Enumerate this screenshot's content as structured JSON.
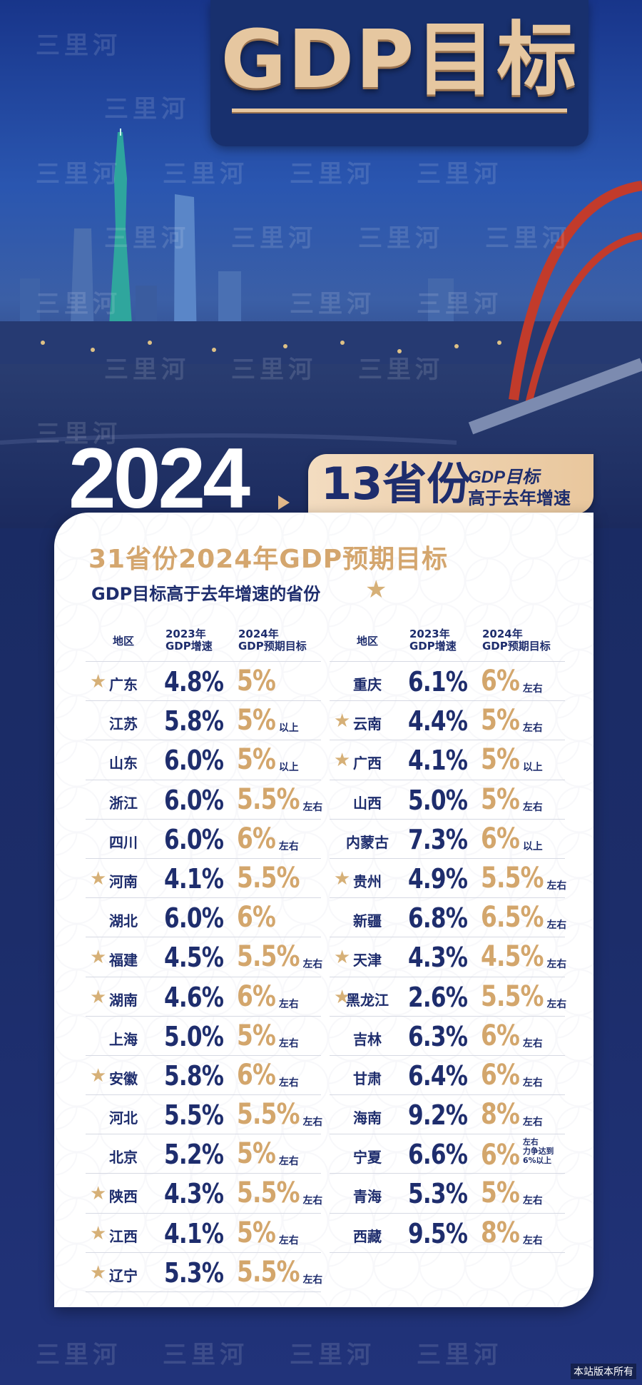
{
  "header": {
    "title": "GDP目标"
  },
  "watermark": "三里河",
  "hero": {
    "year": "2024",
    "count_label": "13省份",
    "sub_line1": "GDP目标",
    "sub_line2": "高于去年增速"
  },
  "card": {
    "title": "31省份2024年GDP预期目标",
    "subtitle": "GDP目标高于去年增速的省份",
    "legend_icon": "star-icon",
    "columns": {
      "region": "地区",
      "growth_2023": [
        "2023年",
        "GDP增速"
      ],
      "target_2024": [
        "2024年",
        "GDP预期目标"
      ]
    },
    "left_rows": [
      {
        "region": "广东",
        "g2023": "4.8%",
        "t2024": "5%",
        "note": "",
        "star": true
      },
      {
        "region": "江苏",
        "g2023": "5.8%",
        "t2024": "5%",
        "note": "以上",
        "star": false
      },
      {
        "region": "山东",
        "g2023": "6.0%",
        "t2024": "5%",
        "note": "以上",
        "star": false
      },
      {
        "region": "浙江",
        "g2023": "6.0%",
        "t2024": "5.5%",
        "note": "左右",
        "star": false
      },
      {
        "region": "四川",
        "g2023": "6.0%",
        "t2024": "6%",
        "note": "左右",
        "star": false
      },
      {
        "region": "河南",
        "g2023": "4.1%",
        "t2024": "5.5%",
        "note": "",
        "star": true
      },
      {
        "region": "湖北",
        "g2023": "6.0%",
        "t2024": "6%",
        "note": "",
        "star": false
      },
      {
        "region": "福建",
        "g2023": "4.5%",
        "t2024": "5.5%",
        "note": "左右",
        "star": true
      },
      {
        "region": "湖南",
        "g2023": "4.6%",
        "t2024": "6%",
        "note": "左右",
        "star": true
      },
      {
        "region": "上海",
        "g2023": "5.0%",
        "t2024": "5%",
        "note": "左右",
        "star": false
      },
      {
        "region": "安徽",
        "g2023": "5.8%",
        "t2024": "6%",
        "note": "左右",
        "star": true
      },
      {
        "region": "河北",
        "g2023": "5.5%",
        "t2024": "5.5%",
        "note": "左右",
        "star": false
      },
      {
        "region": "北京",
        "g2023": "5.2%",
        "t2024": "5%",
        "note": "左右",
        "star": false
      },
      {
        "region": "陕西",
        "g2023": "4.3%",
        "t2024": "5.5%",
        "note": "左右",
        "star": true
      },
      {
        "region": "江西",
        "g2023": "4.1%",
        "t2024": "5%",
        "note": "左右",
        "star": true
      },
      {
        "region": "辽宁",
        "g2023": "5.3%",
        "t2024": "5.5%",
        "note": "左右",
        "star": true
      }
    ],
    "right_rows": [
      {
        "region": "重庆",
        "g2023": "6.1%",
        "t2024": "6%",
        "note": "左右",
        "star": false
      },
      {
        "region": "云南",
        "g2023": "4.4%",
        "t2024": "5%",
        "note": "左右",
        "star": true
      },
      {
        "region": "广西",
        "g2023": "4.1%",
        "t2024": "5%",
        "note": "以上",
        "star": true
      },
      {
        "region": "山西",
        "g2023": "5.0%",
        "t2024": "5%",
        "note": "左右",
        "star": false
      },
      {
        "region": "内蒙古",
        "g2023": "7.3%",
        "t2024": "6%",
        "note": "以上",
        "star": false
      },
      {
        "region": "贵州",
        "g2023": "4.9%",
        "t2024": "5.5%",
        "note": "左右",
        "star": true
      },
      {
        "region": "新疆",
        "g2023": "6.8%",
        "t2024": "6.5%",
        "note": "左右",
        "star": false
      },
      {
        "region": "天津",
        "g2023": "4.3%",
        "t2024": "4.5%",
        "note": "左右",
        "star": true
      },
      {
        "region": "黑龙江",
        "g2023": "2.6%",
        "t2024": "5.5%",
        "note": "左右",
        "star": true
      },
      {
        "region": "吉林",
        "g2023": "6.3%",
        "t2024": "6%",
        "note": "左右",
        "star": false
      },
      {
        "region": "甘肃",
        "g2023": "6.4%",
        "t2024": "6%",
        "note": "左右",
        "star": false
      },
      {
        "region": "海南",
        "g2023": "9.2%",
        "t2024": "8%",
        "note": "左右",
        "star": false
      },
      {
        "region": "宁夏",
        "g2023": "6.6%",
        "t2024": "6%",
        "note": "左右\n力争达到\n6%以上",
        "star": false
      },
      {
        "region": "青海",
        "g2023": "5.3%",
        "t2024": "5%",
        "note": "左右",
        "star": false
      },
      {
        "region": "西藏",
        "g2023": "9.5%",
        "t2024": "8%",
        "note": "左右",
        "star": false
      }
    ]
  },
  "footer": {
    "copyright": "本站版本所有"
  },
  "colors": {
    "navy": "#1e2d6d",
    "gold": "#d3a66c",
    "star": "#d6b077"
  }
}
